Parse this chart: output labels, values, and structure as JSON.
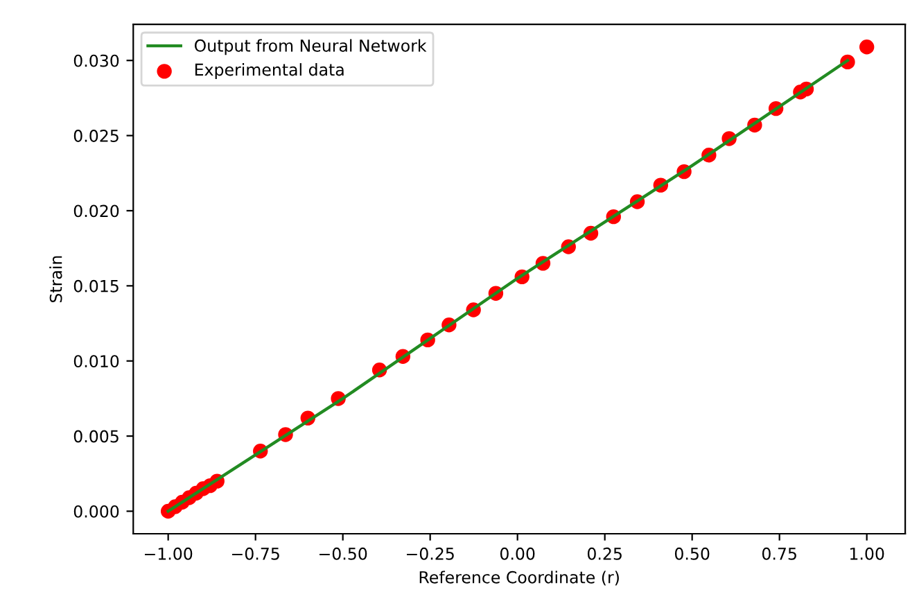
{
  "chart_data": {
    "type": "scatter",
    "xlabel": "Reference Coordinate (r)",
    "ylabel": "Strain",
    "xlim": [
      -1.1,
      1.11
    ],
    "ylim": [
      -0.0015,
      0.0324
    ],
    "xticks": [
      {
        "value": -1.0,
        "label": "−1.00"
      },
      {
        "value": -0.75,
        "label": "−0.75"
      },
      {
        "value": -0.5,
        "label": "−0.50"
      },
      {
        "value": -0.25,
        "label": "−0.25"
      },
      {
        "value": 0,
        "label": "0.00"
      },
      {
        "value": 0.25,
        "label": "0.25"
      },
      {
        "value": 0.5,
        "label": "0.50"
      },
      {
        "value": 0.75,
        "label": "0.75"
      },
      {
        "value": 1.0,
        "label": "1.00"
      }
    ],
    "yticks": [
      {
        "value": 0,
        "label": "0.000"
      },
      {
        "value": 0.005,
        "label": "0.005"
      },
      {
        "value": 0.01,
        "label": "0.010"
      },
      {
        "value": 0.015,
        "label": "0.015"
      },
      {
        "value": 0.02,
        "label": "0.020"
      },
      {
        "value": 0.025,
        "label": "0.025"
      },
      {
        "value": 0.03,
        "label": "0.030"
      }
    ],
    "grid": false,
    "legend": "top left",
    "series": [
      {
        "name": "Output from Neural Network",
        "type": "line",
        "color": "#228b22",
        "marker": "none",
        "line_style": "solid",
        "x": [
          -1.0,
          -0.5,
          0.0,
          0.5,
          0.945
        ],
        "values": [
          0.0,
          0.0075,
          0.0155,
          0.023,
          0.03
        ]
      },
      {
        "name": "Experimental data",
        "color": "#ff0000",
        "marker": "circle",
        "x": [
          -1.0,
          -0.98,
          -0.96,
          -0.94,
          -0.92,
          -0.9,
          -0.88,
          -0.86,
          -0.736,
          -0.664,
          -0.6,
          -0.513,
          -0.395,
          -0.328,
          -0.257,
          -0.196,
          -0.126,
          -0.062,
          0.013,
          0.073,
          0.146,
          0.21,
          0.275,
          0.343,
          0.41,
          0.477,
          0.548,
          0.606,
          0.679,
          0.74,
          0.81,
          0.827,
          0.945,
          1.0
        ],
        "values": [
          0.0,
          0.0003,
          0.0006,
          0.0009,
          0.0012,
          0.0015,
          0.0017,
          0.002,
          0.004,
          0.0051,
          0.0062,
          0.0075,
          0.0094,
          0.0103,
          0.0114,
          0.0124,
          0.0134,
          0.0145,
          0.0156,
          0.0165,
          0.0176,
          0.0185,
          0.0196,
          0.0206,
          0.0217,
          0.0226,
          0.0237,
          0.0248,
          0.0257,
          0.0268,
          0.0279,
          0.0281,
          0.0299,
          0.0309
        ]
      }
    ]
  }
}
